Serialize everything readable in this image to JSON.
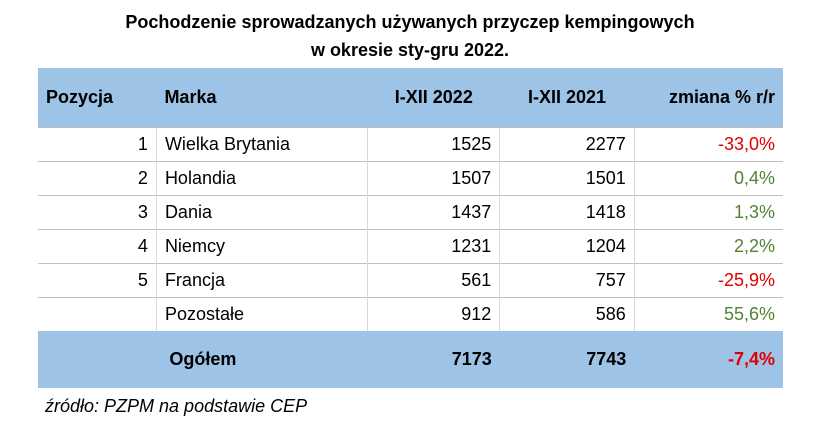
{
  "title": [
    "Pochodzenie sprowadzanych używanych przyczep kempingowych",
    "w okresie sty-gru 2022."
  ],
  "table": {
    "header": [
      "Pozycja",
      "Marka",
      "I-XII 2022",
      "I-XII 2021",
      "zmiana % r/r"
    ],
    "rows": [
      [
        "1",
        "Wielka Brytania",
        "1525",
        "2277",
        "-33,0%"
      ],
      [
        "2",
        "Holandia",
        "1507",
        "1501",
        "0,4%"
      ],
      [
        "3",
        "Dania",
        "1437",
        "1418",
        "1,3%"
      ],
      [
        "4",
        "Niemcy",
        "1231",
        "1204",
        "2,2%"
      ],
      [
        "5",
        "Francja",
        "561",
        "757",
        "-25,9%"
      ],
      [
        null,
        "Pozostałe",
        "912",
        "586",
        "55,6%"
      ]
    ],
    "total": [
      "Ogółem",
      "7173",
      "7743",
      "-7,4%"
    ]
  },
  "source": "źródło: PZPM na podstawie CEP"
}
